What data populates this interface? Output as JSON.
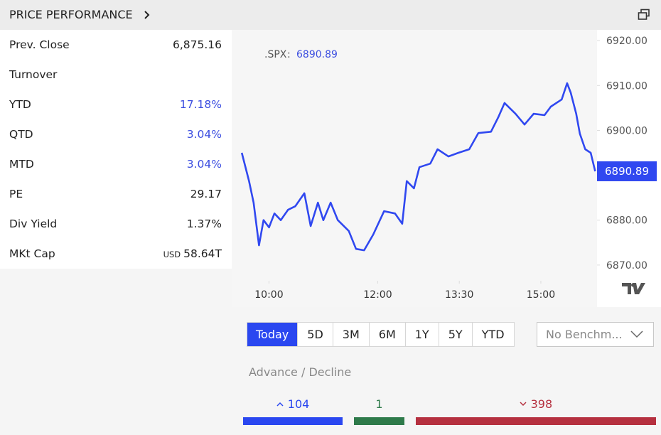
{
  "header": {
    "title": "PRICE PERFORMANCE"
  },
  "stats": [
    {
      "label": "Prev. Close",
      "value": "6,875.16"
    },
    {
      "label": "Turnover"
    },
    {
      "label": "YTD",
      "value": "17.18%"
    },
    {
      "label": "QTD",
      "value": "3.04%"
    },
    {
      "label": "MTD",
      "value": "3.04%"
    },
    {
      "label": "PE",
      "value": "29.17"
    },
    {
      "label": "Div Yield",
      "value": "1.37%"
    },
    {
      "label": "MKt Cap",
      "unit": "USD",
      "value": "58.64T"
    }
  ],
  "chart_data": {
    "type": "line",
    "x": [
      570,
      578,
      583,
      589,
      594,
      600,
      606,
      613,
      621,
      629,
      639,
      646,
      654,
      660,
      668,
      676,
      688,
      696,
      705,
      715,
      727,
      739,
      747,
      752,
      760,
      766,
      778,
      786,
      798,
      809,
      821,
      831,
      845,
      853,
      860,
      872,
      882,
      892,
      904,
      911,
      923,
      929,
      933,
      939,
      943,
      949,
      955,
      960
    ],
    "series": [
      {
        "name": ".SPX",
        "color": "#3048f0",
        "values": [
          6895.0,
          6888.7,
          6883.9,
          6874.4,
          6880.0,
          6878.4,
          6881.5,
          6880.0,
          6882.3,
          6883.1,
          6886.0,
          6878.7,
          6883.9,
          6880.0,
          6883.9,
          6880.0,
          6877.6,
          6873.6,
          6873.3,
          6876.8,
          6882.0,
          6881.5,
          6879.2,
          6888.7,
          6887.1,
          6891.8,
          6892.6,
          6895.8,
          6894.2,
          6895.0,
          6895.8,
          6899.4,
          6899.7,
          6902.9,
          6906.1,
          6903.7,
          6901.3,
          6903.7,
          6903.4,
          6905.3,
          6906.9,
          6910.5,
          6908.4,
          6903.7,
          6899.3,
          6895.8,
          6895.0,
          6890.89
        ]
      }
    ],
    "xlim": [
      562,
      962
    ],
    "xticks": [
      {
        "value": 600,
        "label": "10:00"
      },
      {
        "value": 720,
        "label": "12:00"
      },
      {
        "value": 810,
        "label": "13:30"
      },
      {
        "value": 900,
        "label": "15:00"
      }
    ],
    "ylim": [
      6866.5,
      6922.4
    ],
    "yticks": [
      {
        "value": 6870,
        "label": "6870.00"
      },
      {
        "value": 6880,
        "label": "6880.00"
      },
      {
        "value": 6890,
        "label": "6890.00"
      },
      {
        "value": 6900,
        "label": "6900.00"
      },
      {
        "value": 6910,
        "label": "6910.00"
      },
      {
        "value": 6920,
        "label": "6920.00"
      }
    ]
  },
  "range_buttons": [
    "Today",
    "5D",
    "3M",
    "6M",
    "1Y",
    "5Y",
    "YTD"
  ],
  "benchmark": "No Benchm...",
  "advance_decline": {
    "title": "Advance / Decline",
    "advance": 104,
    "unchanged": 1,
    "decline": 398
  }
}
